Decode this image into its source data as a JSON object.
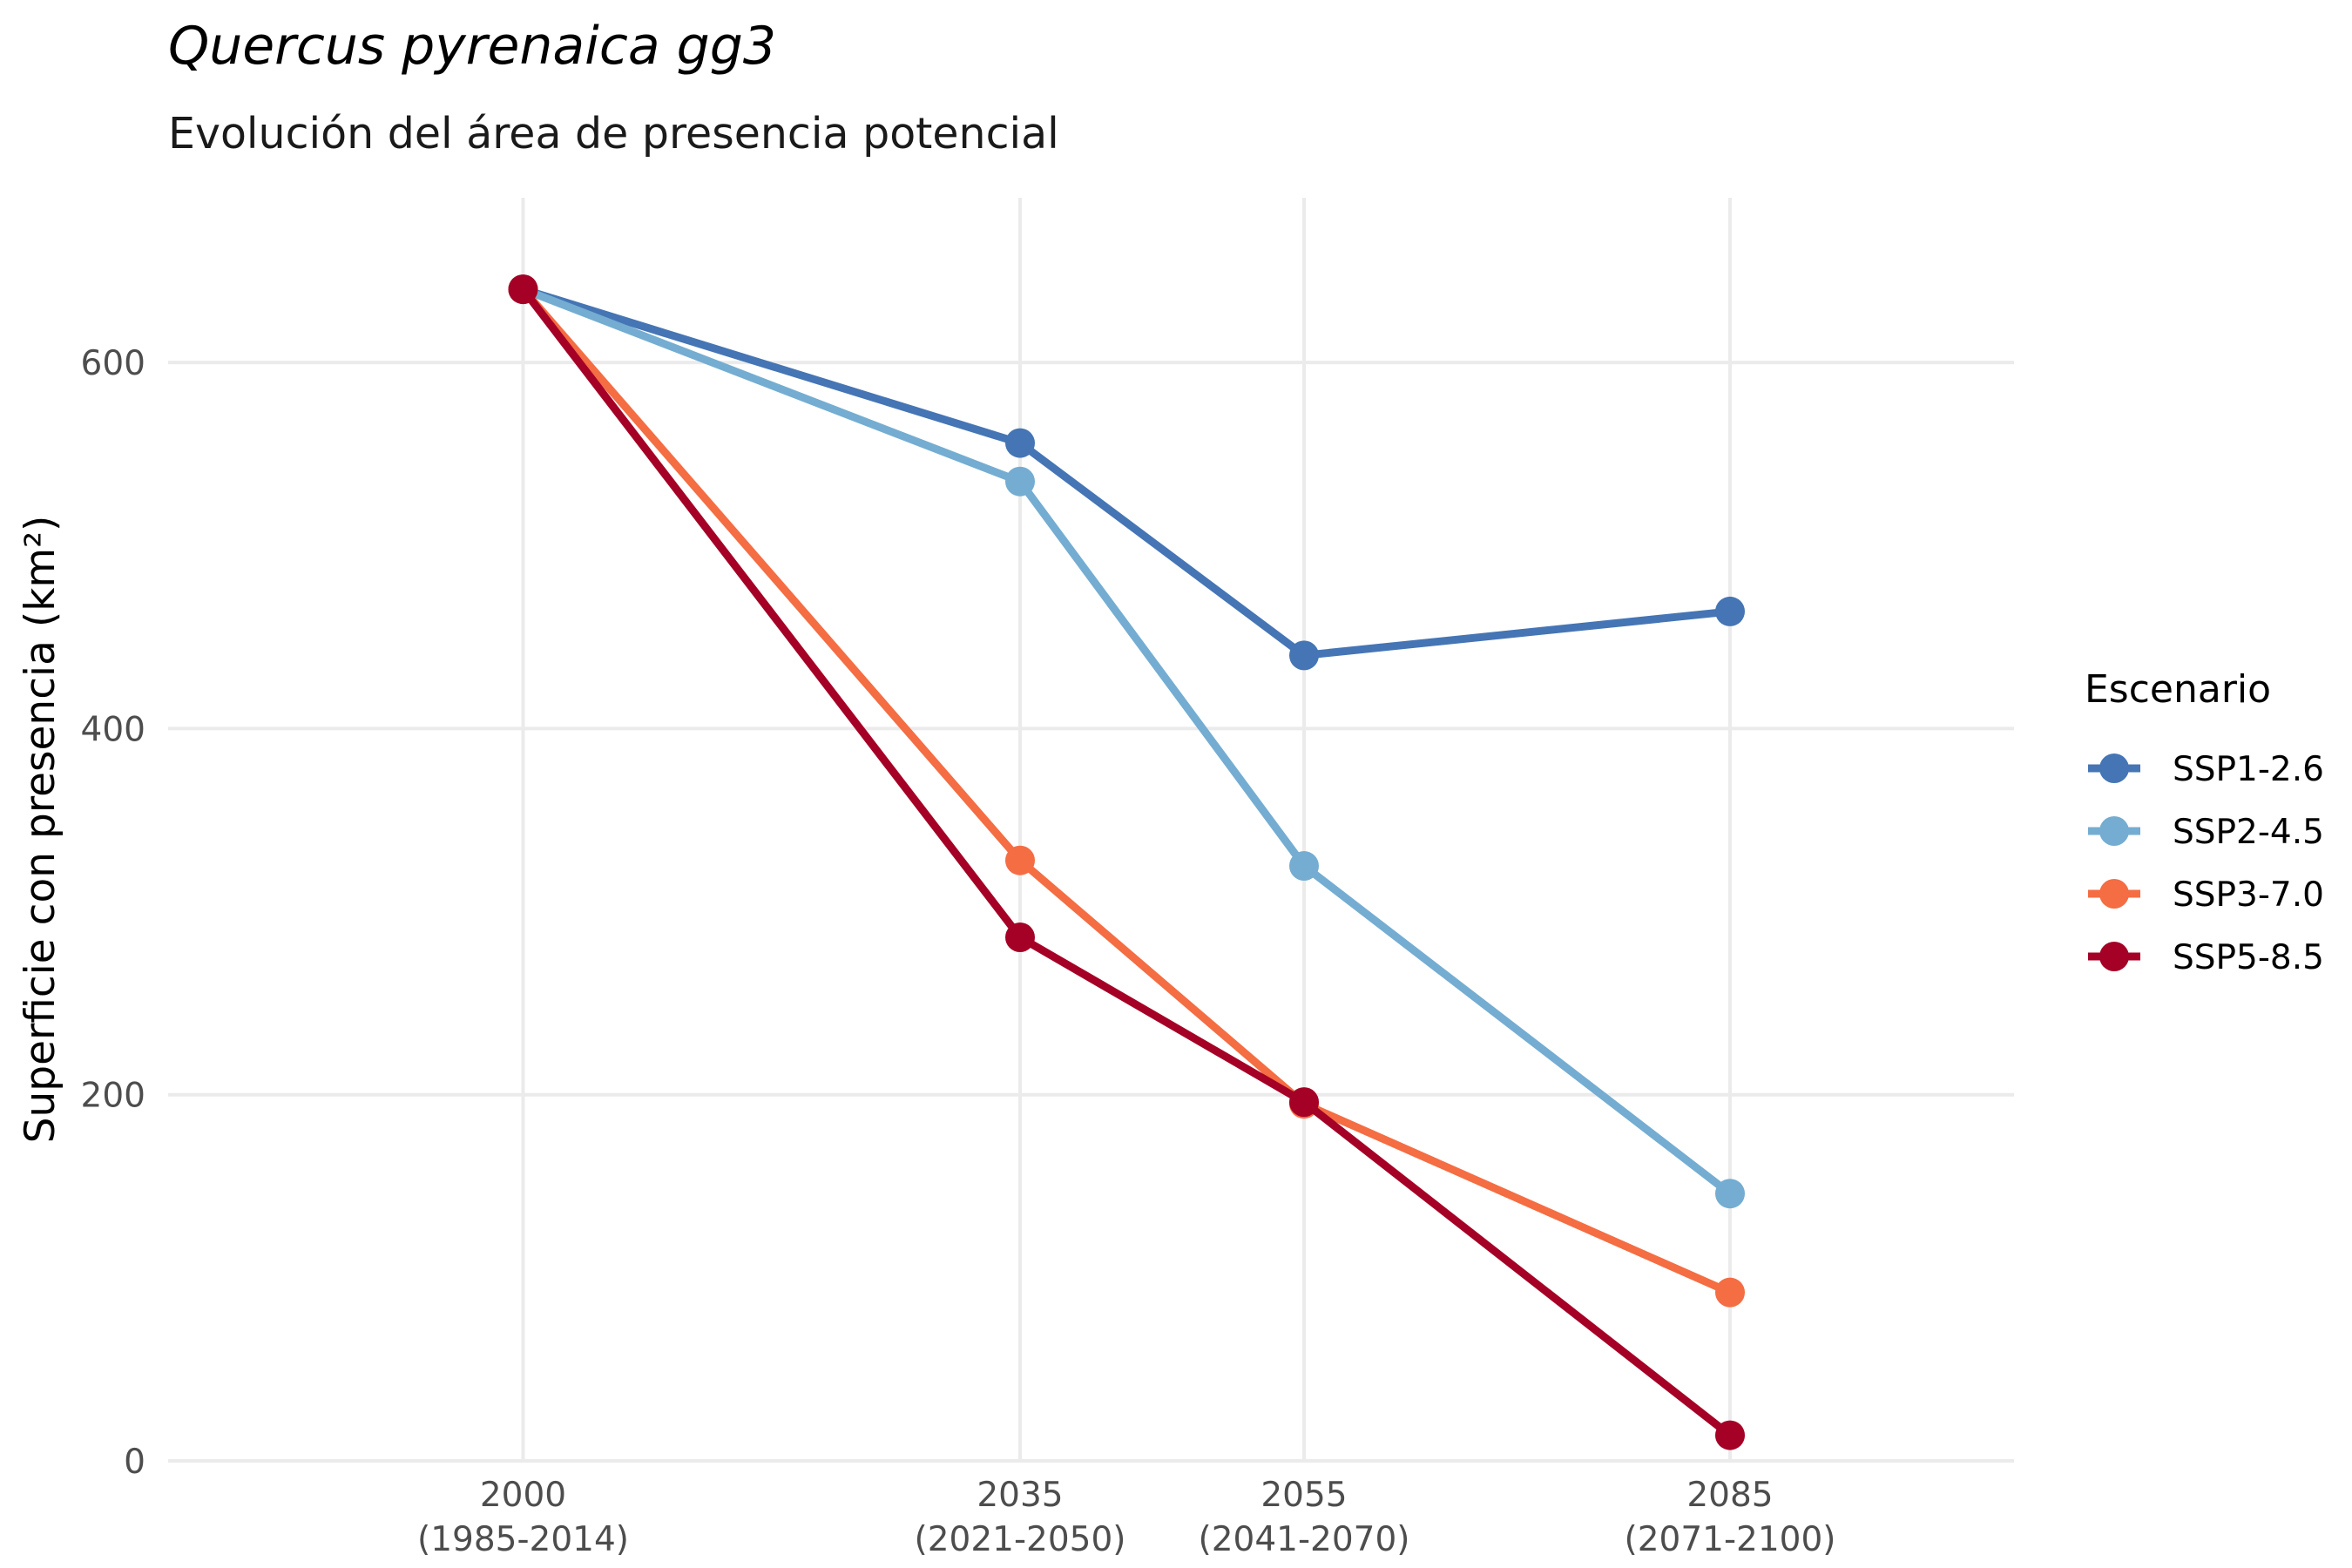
{
  "chart_data": {
    "type": "line",
    "title": "Quercus pyrenaica gg3",
    "subtitle": "Evolución del área de presencia potencial",
    "xlabel": "",
    "ylabel": "Superficie con presencia (km²)",
    "x": [
      2000,
      2035,
      2055,
      2085
    ],
    "x_tick_labels": [
      {
        "year": "2000",
        "period": "(1985-2014)"
      },
      {
        "year": "2035",
        "period": "(2021-2050)"
      },
      {
        "year": "2055",
        "period": "(2041-2070)"
      },
      {
        "year": "2085",
        "period": "(2071-2100)"
      }
    ],
    "y_ticks": [
      0,
      200,
      400,
      600
    ],
    "xlim": [
      1975,
      2105
    ],
    "ylim": [
      0,
      690
    ],
    "grid": true,
    "legend": {
      "title": "Escenario",
      "position": "right"
    },
    "series": [
      {
        "name": "SSP1-2.6",
        "color": "#4575b4",
        "values": [
          640,
          556,
          440,
          464
        ]
      },
      {
        "name": "SSP2-4.5",
        "color": "#74add1",
        "values": [
          640,
          535,
          325,
          146
        ]
      },
      {
        "name": "SSP3-7.0",
        "color": "#f46d43",
        "values": [
          640,
          328,
          195,
          92
        ]
      },
      {
        "name": "SSP5-8.5",
        "color": "#a50026",
        "values": [
          640,
          286,
          196,
          14
        ]
      }
    ]
  }
}
